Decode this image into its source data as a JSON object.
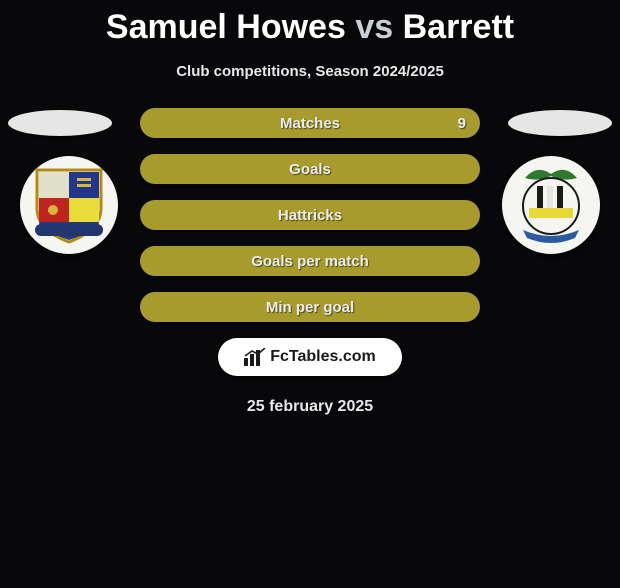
{
  "title": {
    "player1": "Samuel Howes",
    "vs": "vs",
    "player2": "Barrett"
  },
  "subtitle": "Club competitions, Season 2024/2025",
  "bars": [
    {
      "label": "Matches",
      "right_value": "9",
      "bg": "#a89b2d"
    },
    {
      "label": "Goals",
      "right_value": "",
      "bg": "#a89b2d"
    },
    {
      "label": "Hattricks",
      "right_value": "",
      "bg": "#a89b2d"
    },
    {
      "label": "Goals per match",
      "right_value": "",
      "bg": "#a89b2d"
    },
    {
      "label": "Min per goal",
      "right_value": "",
      "bg": "#a89b2d"
    }
  ],
  "promo": {
    "text": "FcTables.com"
  },
  "date": "25 february 2025",
  "colors": {
    "page_bg": "#08080a",
    "ellipse": "#e6e6e6",
    "crest_bg": "#f5f5f2",
    "text_light": "#ecedec"
  },
  "crest_left": {
    "shield_border": "#b48a12",
    "q_tl": "#dfe0c7",
    "q_tr": "#23378a",
    "q_bl": "#c0241f",
    "q_br": "#e8dd3b",
    "banner_bg": "#21356f",
    "banner_text": "#dcdccf"
  },
  "crest_right": {
    "band_top": "#1a1a1a",
    "band_mid": "#e7da38",
    "circle_bg": "#f5f5f2",
    "leaf": "#2d7a2f",
    "ribbon": "#2c5aa0"
  }
}
